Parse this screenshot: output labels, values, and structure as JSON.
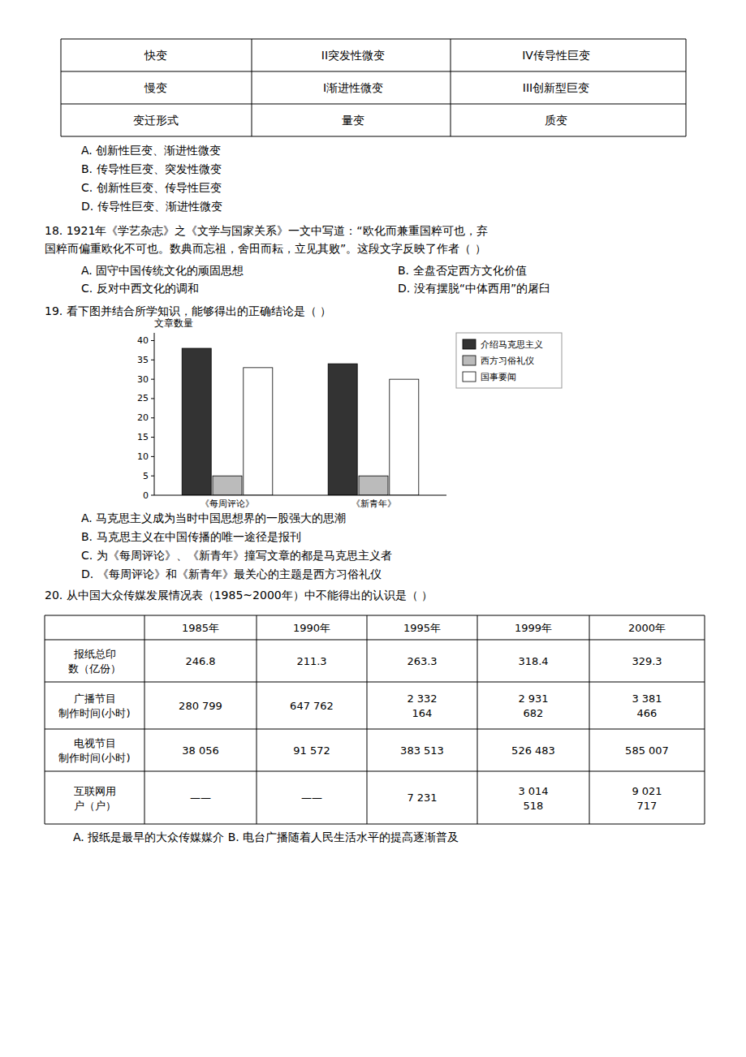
{
  "chart_data": {
    "type": "bar",
    "title": "文章数量",
    "categories": [
      "《每周评论》",
      "《新青年》"
    ],
    "series": [
      {
        "name": "介绍马克思主义",
        "color": "#333333",
        "values": [
          38,
          34
        ]
      },
      {
        "name": "西方习俗礼仪",
        "color": "#bbbbbb",
        "values": [
          5,
          5
        ]
      },
      {
        "name": "国事要闻",
        "color": "#ffffff",
        "values": [
          33,
          30
        ]
      }
    ],
    "ylim": [
      0,
      42
    ],
    "yticks": [
      0,
      5,
      10,
      15,
      20,
      25,
      30,
      35,
      40
    ],
    "grid": false,
    "legend": "right"
  },
  "page": {
    "table1_rows": [
      [
        "快变",
        "II突发性微变",
        "IV传导性巨变"
      ],
      [
        "慢变",
        "I渐进性微变",
        "III创新型巨变"
      ],
      [
        "变迁形式",
        "量变",
        "质变"
      ]
    ],
    "q17_options": [
      "A. 创新性巨变、渐进性微变",
      "B. 传导性巨变、突发性微变",
      "C. 创新性巨变、传导性巨变",
      "D. 传导性巨变、渐进性微变"
    ],
    "q18_text1": "18. 1921年《学艺杂志》之《文学与国家关系》一文中写道：“欧化而兼重国粹可也，弃",
    "q18_text2": "国粹而偏重欧化不可也。数典而忘祖，舍田而耘，立见其败”。这段文字反映了作者（     ）",
    "q18_opt_A": "A. 固守中国传统文化的顽固思想",
    "q18_opt_B": "B. 全盘否定西方文化价值",
    "q18_opt_C": "C. 反对中西文化的调和",
    "q18_opt_D": "D. 没有摆脱“中体西用”的屠臼",
    "q19_text": "19. 看下图并结合所学知识，能够得出的正确结论是（     ）",
    "q19_options": [
      "A. 马克思主义成为当时中国思想界的一股强大的思潮",
      "B. 马克思主义在中国传播的唯一途径是报刊",
      "C. 为《每周评论》、《新青年》撞写文章的都是马克思主义者",
      "D. 《每周评论》和《新青年》最关心的主题是西方习俗礼仪"
    ],
    "q20_text": "20. 从中国大众传媒发展情况表（1985~2000年）中不能得出的认识是（     ）",
    "table2_headers": [
      "1985年",
      "1990年",
      "1995年",
      "1999年",
      "2000年"
    ],
    "table2_col0": [
      "报纸总印\n数（亿份）",
      "广播节目\n制作时间(小时)",
      "电视节目\n制作时间(小时)",
      "互联网用\n户（户）"
    ],
    "table2_data": [
      [
        "246.8",
        "211.3",
        "263.3",
        "318.4",
        "329.3"
      ],
      [
        "280 799",
        "647 762",
        "2 332\n164",
        "2 931\n682",
        "3 381\n466"
      ],
      [
        "38 056",
        "91 572",
        "383 513",
        "526 483",
        "585 007"
      ],
      [
        "——",
        "——",
        "7 231",
        "3 014\n518",
        "9 021\n717"
      ]
    ],
    "q20_options_text": "A. 报纸是最早的大众传媒媒介        B. 电台广播随着人民生活水平的提高逐渐普及"
  }
}
